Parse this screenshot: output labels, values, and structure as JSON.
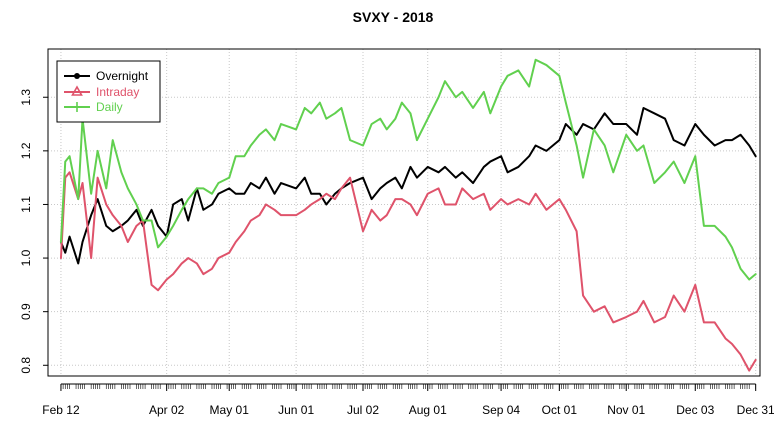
{
  "chart_data": {
    "type": "line",
    "title": "SVXY - 2018",
    "xlabel": "",
    "ylabel": "",
    "x_ticks": [
      "Feb 12",
      "Apr 02",
      "May 01",
      "Jun 01",
      "Jul 02",
      "Aug 01",
      "Sep 04",
      "Oct 01",
      "Nov 01",
      "Dec 03",
      "Dec 31"
    ],
    "x_tick_dates": [
      "2018-02-12",
      "2018-04-02",
      "2018-05-01",
      "2018-06-01",
      "2018-07-02",
      "2018-08-01",
      "2018-09-04",
      "2018-10-01",
      "2018-11-01",
      "2018-12-03",
      "2018-12-31"
    ],
    "xlim": [
      "2018-02-06",
      "2019-01-02"
    ],
    "y_ticks": [
      "0.8",
      "0.9",
      "1.0",
      "1.1",
      "1.2",
      "1.3"
    ],
    "ylim": [
      0.78,
      1.39
    ],
    "grid": true,
    "legend_position": "top-left",
    "series": [
      {
        "name": "Overnight",
        "color": "#000000",
        "x": [
          "2018-02-12",
          "2018-02-14",
          "2018-02-16",
          "2018-02-20",
          "2018-02-22",
          "2018-02-26",
          "2018-03-01",
          "2018-03-05",
          "2018-03-08",
          "2018-03-12",
          "2018-03-15",
          "2018-03-19",
          "2018-03-22",
          "2018-03-26",
          "2018-03-29",
          "2018-04-02",
          "2018-04-05",
          "2018-04-09",
          "2018-04-12",
          "2018-04-16",
          "2018-04-19",
          "2018-04-23",
          "2018-04-26",
          "2018-05-01",
          "2018-05-04",
          "2018-05-08",
          "2018-05-11",
          "2018-05-15",
          "2018-05-18",
          "2018-05-22",
          "2018-05-25",
          "2018-06-01",
          "2018-06-05",
          "2018-06-08",
          "2018-06-12",
          "2018-06-15",
          "2018-06-19",
          "2018-06-22",
          "2018-06-26",
          "2018-07-02",
          "2018-07-06",
          "2018-07-10",
          "2018-07-13",
          "2018-07-17",
          "2018-07-20",
          "2018-07-24",
          "2018-07-27",
          "2018-08-01",
          "2018-08-06",
          "2018-08-09",
          "2018-08-14",
          "2018-08-17",
          "2018-08-22",
          "2018-08-27",
          "2018-08-30",
          "2018-09-04",
          "2018-09-07",
          "2018-09-12",
          "2018-09-17",
          "2018-09-20",
          "2018-09-25",
          "2018-10-01",
          "2018-10-04",
          "2018-10-09",
          "2018-10-12",
          "2018-10-17",
          "2018-10-22",
          "2018-10-26",
          "2018-11-01",
          "2018-11-06",
          "2018-11-09",
          "2018-11-14",
          "2018-11-19",
          "2018-11-23",
          "2018-11-28",
          "2018-12-03",
          "2018-12-07",
          "2018-12-12",
          "2018-12-17",
          "2018-12-20",
          "2018-12-24",
          "2018-12-28",
          "2018-12-31"
        ],
        "values": [
          1.03,
          1.01,
          1.04,
          0.99,
          1.03,
          1.08,
          1.11,
          1.06,
          1.05,
          1.06,
          1.07,
          1.09,
          1.06,
          1.09,
          1.06,
          1.04,
          1.1,
          1.11,
          1.07,
          1.13,
          1.09,
          1.1,
          1.12,
          1.13,
          1.12,
          1.12,
          1.14,
          1.13,
          1.15,
          1.12,
          1.14,
          1.13,
          1.15,
          1.12,
          1.12,
          1.1,
          1.12,
          1.13,
          1.14,
          1.15,
          1.11,
          1.13,
          1.14,
          1.15,
          1.13,
          1.17,
          1.15,
          1.17,
          1.16,
          1.17,
          1.15,
          1.16,
          1.14,
          1.17,
          1.18,
          1.19,
          1.16,
          1.17,
          1.19,
          1.21,
          1.2,
          1.22,
          1.25,
          1.23,
          1.25,
          1.24,
          1.27,
          1.25,
          1.25,
          1.23,
          1.28,
          1.27,
          1.26,
          1.22,
          1.21,
          1.25,
          1.23,
          1.21,
          1.22,
          1.22,
          1.23,
          1.21,
          1.19
        ]
      },
      {
        "name": "Intraday",
        "color": "#DF536B",
        "x": [
          "2018-02-12",
          "2018-02-14",
          "2018-02-16",
          "2018-02-20",
          "2018-02-22",
          "2018-02-26",
          "2018-03-01",
          "2018-03-05",
          "2018-03-08",
          "2018-03-12",
          "2018-03-15",
          "2018-03-19",
          "2018-03-22",
          "2018-03-26",
          "2018-03-29",
          "2018-04-02",
          "2018-04-05",
          "2018-04-09",
          "2018-04-12",
          "2018-04-16",
          "2018-04-19",
          "2018-04-23",
          "2018-04-26",
          "2018-05-01",
          "2018-05-04",
          "2018-05-08",
          "2018-05-11",
          "2018-05-15",
          "2018-05-18",
          "2018-05-22",
          "2018-05-25",
          "2018-06-01",
          "2018-06-05",
          "2018-06-08",
          "2018-06-12",
          "2018-06-15",
          "2018-06-19",
          "2018-06-22",
          "2018-06-26",
          "2018-07-02",
          "2018-07-06",
          "2018-07-10",
          "2018-07-13",
          "2018-07-17",
          "2018-07-20",
          "2018-07-24",
          "2018-07-27",
          "2018-08-01",
          "2018-08-06",
          "2018-08-09",
          "2018-08-14",
          "2018-08-17",
          "2018-08-22",
          "2018-08-27",
          "2018-08-30",
          "2018-09-04",
          "2018-09-07",
          "2018-09-12",
          "2018-09-17",
          "2018-09-20",
          "2018-09-25",
          "2018-10-01",
          "2018-10-04",
          "2018-10-09",
          "2018-10-12",
          "2018-10-17",
          "2018-10-22",
          "2018-10-26",
          "2018-11-01",
          "2018-11-06",
          "2018-11-09",
          "2018-11-14",
          "2018-11-19",
          "2018-11-23",
          "2018-11-28",
          "2018-12-03",
          "2018-12-07",
          "2018-12-12",
          "2018-12-17",
          "2018-12-20",
          "2018-12-24",
          "2018-12-28",
          "2018-12-31"
        ],
        "values": [
          1.0,
          1.15,
          1.16,
          1.11,
          1.14,
          1.0,
          1.15,
          1.1,
          1.08,
          1.06,
          1.03,
          1.06,
          1.07,
          0.95,
          0.94,
          0.96,
          0.97,
          0.99,
          1.0,
          0.99,
          0.97,
          0.98,
          1.0,
          1.01,
          1.03,
          1.05,
          1.07,
          1.08,
          1.1,
          1.09,
          1.08,
          1.08,
          1.09,
          1.1,
          1.11,
          1.12,
          1.11,
          1.13,
          1.15,
          1.05,
          1.09,
          1.07,
          1.08,
          1.11,
          1.11,
          1.1,
          1.08,
          1.12,
          1.13,
          1.1,
          1.1,
          1.13,
          1.11,
          1.12,
          1.09,
          1.11,
          1.1,
          1.11,
          1.1,
          1.12,
          1.09,
          1.11,
          1.09,
          1.05,
          0.93,
          0.9,
          0.91,
          0.88,
          0.89,
          0.9,
          0.92,
          0.88,
          0.89,
          0.93,
          0.9,
          0.95,
          0.88,
          0.88,
          0.85,
          0.84,
          0.82,
          0.79,
          0.81
        ]
      },
      {
        "name": "Daily",
        "color": "#61D04F",
        "x": [
          "2018-02-12",
          "2018-02-14",
          "2018-02-16",
          "2018-02-20",
          "2018-02-22",
          "2018-02-26",
          "2018-03-01",
          "2018-03-05",
          "2018-03-08",
          "2018-03-12",
          "2018-03-15",
          "2018-03-19",
          "2018-03-22",
          "2018-03-26",
          "2018-03-29",
          "2018-04-02",
          "2018-04-05",
          "2018-04-09",
          "2018-04-12",
          "2018-04-16",
          "2018-04-19",
          "2018-04-23",
          "2018-04-26",
          "2018-05-01",
          "2018-05-04",
          "2018-05-08",
          "2018-05-11",
          "2018-05-15",
          "2018-05-18",
          "2018-05-22",
          "2018-05-25",
          "2018-06-01",
          "2018-06-05",
          "2018-06-08",
          "2018-06-12",
          "2018-06-15",
          "2018-06-19",
          "2018-06-22",
          "2018-06-26",
          "2018-07-02",
          "2018-07-06",
          "2018-07-10",
          "2018-07-13",
          "2018-07-17",
          "2018-07-20",
          "2018-07-24",
          "2018-07-27",
          "2018-08-01",
          "2018-08-06",
          "2018-08-09",
          "2018-08-14",
          "2018-08-17",
          "2018-08-22",
          "2018-08-27",
          "2018-08-30",
          "2018-09-04",
          "2018-09-07",
          "2018-09-12",
          "2018-09-17",
          "2018-09-20",
          "2018-09-25",
          "2018-10-01",
          "2018-10-04",
          "2018-10-09",
          "2018-10-12",
          "2018-10-17",
          "2018-10-22",
          "2018-10-26",
          "2018-11-01",
          "2018-11-06",
          "2018-11-09",
          "2018-11-14",
          "2018-11-19",
          "2018-11-23",
          "2018-11-28",
          "2018-12-03",
          "2018-12-07",
          "2018-12-12",
          "2018-12-17",
          "2018-12-20",
          "2018-12-24",
          "2018-12-28",
          "2018-12-31"
        ],
        "values": [
          1.03,
          1.18,
          1.19,
          1.11,
          1.26,
          1.12,
          1.2,
          1.13,
          1.22,
          1.16,
          1.13,
          1.1,
          1.07,
          1.07,
          1.02,
          1.04,
          1.06,
          1.09,
          1.11,
          1.13,
          1.13,
          1.12,
          1.14,
          1.15,
          1.19,
          1.19,
          1.21,
          1.23,
          1.24,
          1.22,
          1.25,
          1.24,
          1.28,
          1.27,
          1.29,
          1.26,
          1.27,
          1.28,
          1.22,
          1.21,
          1.25,
          1.26,
          1.24,
          1.26,
          1.29,
          1.27,
          1.22,
          1.26,
          1.3,
          1.33,
          1.3,
          1.31,
          1.28,
          1.31,
          1.27,
          1.32,
          1.34,
          1.35,
          1.32,
          1.37,
          1.36,
          1.34,
          1.29,
          1.21,
          1.15,
          1.24,
          1.21,
          1.16,
          1.23,
          1.2,
          1.21,
          1.14,
          1.16,
          1.18,
          1.14,
          1.19,
          1.06,
          1.06,
          1.04,
          1.02,
          0.98,
          0.96,
          0.97
        ]
      }
    ]
  }
}
